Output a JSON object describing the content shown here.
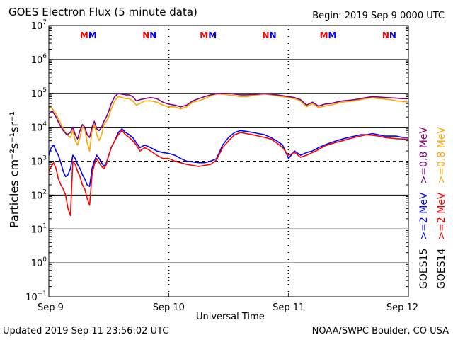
{
  "header": {
    "title": "GOES Electron Flux (5 minute data)",
    "begin": "Begin: 2019 Sep 9 0000 UTC"
  },
  "footer": {
    "updated": "Updated 2019 Sep 11 23:56:02 UTC",
    "credit": "NOAA/SWPC Boulder, CO USA"
  },
  "legend": {
    "goes15": {
      "label": "GOES15",
      "e2_label": ">=2 MeV",
      "e08_label": ">=0.8 MeV",
      "e2_color": "#0000ff",
      "e08_color": "#800080"
    },
    "goes14": {
      "label": "GOES14",
      "e2_label": ">=2 MeV",
      "e08_label": ">=0.8 MeV",
      "e2_color": "#ff0000",
      "e08_color": "#ffa500"
    }
  },
  "markers": [
    {
      "day": 0.33,
      "letters": [
        {
          "t": "M",
          "color": "#ff0000"
        },
        {
          "t": "M",
          "color": "#0000ff"
        }
      ]
    },
    {
      "day": 0.84,
      "letters": [
        {
          "t": "N",
          "color": "#ff0000"
        },
        {
          "t": "N",
          "color": "#0000ff"
        }
      ]
    },
    {
      "day": 1.33,
      "letters": [
        {
          "t": "M",
          "color": "#ff0000"
        },
        {
          "t": "M",
          "color": "#0000ff"
        }
      ]
    },
    {
      "day": 1.84,
      "letters": [
        {
          "t": "N",
          "color": "#ff0000"
        },
        {
          "t": "N",
          "color": "#0000ff"
        }
      ]
    },
    {
      "day": 2.33,
      "letters": [
        {
          "t": "M",
          "color": "#ff0000"
        },
        {
          "t": "M",
          "color": "#0000ff"
        }
      ]
    },
    {
      "day": 2.84,
      "letters": [
        {
          "t": "N",
          "color": "#ff0000"
        },
        {
          "t": "N",
          "color": "#0000ff"
        }
      ]
    }
  ],
  "chart_data": {
    "type": "line",
    "title": "GOES Electron Flux (5 minute data)",
    "xlabel": "Universal Time",
    "ylabel": "Particles cm⁻²s⁻¹sr⁻¹",
    "y_scale": "log",
    "xlim": [
      0,
      3
    ],
    "ylim": [
      0.1,
      10000000
    ],
    "x_ticks": [
      {
        "v": 0,
        "label": "Sep 9"
      },
      {
        "v": 1,
        "label": "Sep 10"
      },
      {
        "v": 2,
        "label": "Sep 11"
      },
      {
        "v": 3,
        "label": "Sep 12"
      }
    ],
    "y_ticks": [
      {
        "v": 0.1,
        "base": "10",
        "exp": "−1"
      },
      {
        "v": 1,
        "base": "10",
        "exp": "0"
      },
      {
        "v": 10,
        "base": "10",
        "exp": "1"
      },
      {
        "v": 100,
        "base": "10",
        "exp": "2"
      },
      {
        "v": 1000,
        "base": "10",
        "exp": "3"
      },
      {
        "v": 10000,
        "base": "10",
        "exp": "4"
      },
      {
        "v": 100000,
        "base": "10",
        "exp": "5"
      },
      {
        "v": 1000000,
        "base": "10",
        "exp": "6"
      },
      {
        "v": 10000000,
        "base": "10",
        "exp": "7"
      }
    ],
    "hlines": [
      1,
      10,
      100,
      10000,
      100000,
      1000000
    ],
    "dashed_hline": 1000,
    "series": [
      {
        "name": "GOES14 >=0.8 MeV",
        "color": "#ffa500",
        "x": [
          0,
          0.03,
          0.06,
          0.09,
          0.12,
          0.15,
          0.18,
          0.2,
          0.22,
          0.24,
          0.26,
          0.28,
          0.3,
          0.32,
          0.34,
          0.36,
          0.38,
          0.4,
          0.42,
          0.44,
          0.46,
          0.48,
          0.5,
          0.52,
          0.55,
          0.58,
          0.61,
          0.64,
          0.67,
          0.7,
          0.73,
          0.76,
          0.8,
          0.85,
          0.9,
          0.95,
          1.0,
          1.05,
          1.1,
          1.15,
          1.2,
          1.25,
          1.3,
          1.35,
          1.4,
          1.45,
          1.5,
          1.55,
          1.6,
          1.65,
          1.7,
          1.75,
          1.8,
          1.85,
          1.9,
          1.95,
          2.0,
          2.05,
          2.1,
          2.15,
          2.2,
          2.25,
          2.3,
          2.35,
          2.4,
          2.45,
          2.5,
          2.55,
          2.6,
          2.65,
          2.7,
          2.75,
          2.8,
          2.85,
          2.9,
          2.95,
          3.0
        ],
        "y": [
          40000,
          35000,
          25000,
          15000,
          9000,
          6000,
          5000,
          8000,
          4000,
          3000,
          5000,
          10000,
          9000,
          3500,
          2000,
          8000,
          12000,
          6000,
          4000,
          6000,
          12000,
          15000,
          20000,
          35000,
          60000,
          80000,
          75000,
          70000,
          70000,
          60000,
          45000,
          50000,
          60000,
          60000,
          55000,
          45000,
          40000,
          40000,
          35000,
          40000,
          55000,
          60000,
          70000,
          85000,
          95000,
          95000,
          90000,
          85000,
          80000,
          80000,
          85000,
          90000,
          95000,
          90000,
          85000,
          80000,
          75000,
          70000,
          60000,
          40000,
          50000,
          38000,
          42000,
          45000,
          50000,
          55000,
          58000,
          60000,
          65000,
          70000,
          75000,
          70000,
          68000,
          65000,
          60000,
          58000,
          55000
        ]
      },
      {
        "name": "GOES15 >=0.8 MeV",
        "color": "#800080",
        "x": [
          0,
          0.03,
          0.06,
          0.09,
          0.12,
          0.15,
          0.18,
          0.2,
          0.22,
          0.24,
          0.26,
          0.28,
          0.3,
          0.32,
          0.34,
          0.36,
          0.38,
          0.4,
          0.42,
          0.44,
          0.46,
          0.48,
          0.5,
          0.52,
          0.55,
          0.58,
          0.61,
          0.64,
          0.67,
          0.7,
          0.73,
          0.76,
          0.8,
          0.85,
          0.9,
          0.95,
          1.0,
          1.05,
          1.1,
          1.15,
          1.2,
          1.25,
          1.3,
          1.35,
          1.4,
          1.45,
          1.5,
          1.55,
          1.6,
          1.65,
          1.7,
          1.75,
          1.8,
          1.85,
          1.9,
          1.95,
          2.0,
          2.05,
          2.1,
          2.15,
          2.2,
          2.25,
          2.3,
          2.35,
          2.4,
          2.45,
          2.5,
          2.55,
          2.6,
          2.65,
          2.7,
          2.75,
          2.8,
          2.85,
          2.9,
          2.95,
          3.0
        ],
        "y": [
          25000,
          30000,
          20000,
          12000,
          8000,
          6000,
          7000,
          10000,
          6000,
          4500,
          8000,
          12000,
          10000,
          6000,
          5000,
          10000,
          15000,
          9000,
          8000,
          10000,
          15000,
          20000,
          30000,
          50000,
          80000,
          100000,
          95000,
          90000,
          90000,
          80000,
          60000,
          65000,
          70000,
          75000,
          70000,
          55000,
          48000,
          45000,
          40000,
          45000,
          60000,
          70000,
          80000,
          90000,
          98000,
          100000,
          100000,
          95000,
          90000,
          90000,
          92000,
          95000,
          98000,
          95000,
          90000,
          85000,
          80000,
          75000,
          65000,
          45000,
          55000,
          42000,
          48000,
          50000,
          55000,
          60000,
          62000,
          65000,
          70000,
          75000,
          80000,
          78000,
          76000,
          74000,
          72000,
          70000,
          70000
        ]
      },
      {
        "name": "GOES15 >=2 MeV",
        "color": "#0000ff",
        "x": [
          0,
          0.02,
          0.04,
          0.06,
          0.08,
          0.1,
          0.12,
          0.14,
          0.16,
          0.18,
          0.2,
          0.22,
          0.24,
          0.26,
          0.28,
          0.3,
          0.32,
          0.34,
          0.36,
          0.38,
          0.4,
          0.42,
          0.44,
          0.46,
          0.48,
          0.5,
          0.52,
          0.55,
          0.58,
          0.61,
          0.64,
          0.67,
          0.7,
          0.73,
          0.76,
          0.8,
          0.85,
          0.9,
          0.95,
          1.0,
          1.05,
          1.1,
          1.15,
          1.2,
          1.25,
          1.3,
          1.35,
          1.4,
          1.45,
          1.5,
          1.55,
          1.6,
          1.65,
          1.7,
          1.75,
          1.8,
          1.85,
          1.9,
          1.95,
          2.0,
          2.05,
          2.1,
          2.15,
          2.2,
          2.25,
          2.3,
          2.35,
          2.4,
          2.45,
          2.5,
          2.55,
          2.6,
          2.65,
          2.7,
          2.75,
          2.8,
          2.85,
          2.9,
          2.95,
          3.0
        ],
        "y": [
          1500,
          2500,
          3000,
          2000,
          1500,
          900,
          500,
          350,
          400,
          600,
          1500,
          1200,
          800,
          600,
          400,
          300,
          200,
          180,
          600,
          1000,
          1500,
          1200,
          900,
          700,
          900,
          1500,
          2500,
          4000,
          7000,
          9000,
          7000,
          6000,
          5000,
          3500,
          2500,
          3000,
          2500,
          2000,
          1800,
          1700,
          1500,
          1200,
          1000,
          950,
          900,
          900,
          1000,
          1200,
          3000,
          5000,
          7000,
          8000,
          7500,
          7000,
          6500,
          6000,
          5000,
          4000,
          3000,
          1200,
          2000,
          1500,
          1800,
          2000,
          2500,
          3000,
          3500,
          4000,
          4500,
          5000,
          5500,
          6000,
          6000,
          6500,
          6000,
          5500,
          5500,
          5500,
          5000,
          5000
        ]
      },
      {
        "name": "GOES14 >=2 MeV",
        "color": "#ff0000",
        "x": [
          0,
          0.02,
          0.04,
          0.06,
          0.08,
          0.1,
          0.12,
          0.14,
          0.16,
          0.18,
          0.2,
          0.22,
          0.24,
          0.26,
          0.28,
          0.3,
          0.32,
          0.34,
          0.36,
          0.38,
          0.4,
          0.42,
          0.44,
          0.46,
          0.48,
          0.5,
          0.52,
          0.55,
          0.58,
          0.61,
          0.64,
          0.67,
          0.7,
          0.73,
          0.76,
          0.8,
          0.85,
          0.9,
          0.95,
          1.0,
          1.05,
          1.1,
          1.15,
          1.2,
          1.25,
          1.3,
          1.35,
          1.4,
          1.45,
          1.5,
          1.55,
          1.6,
          1.65,
          1.7,
          1.75,
          1.8,
          1.85,
          1.9,
          1.95,
          2.0,
          2.05,
          2.1,
          2.15,
          2.2,
          2.25,
          2.3,
          2.35,
          2.4,
          2.45,
          2.5,
          2.55,
          2.6,
          2.65,
          2.7,
          2.75,
          2.8,
          2.85,
          2.9,
          2.95,
          3.0
        ],
        "y": [
          500,
          700,
          900,
          600,
          300,
          200,
          150,
          100,
          40,
          25,
          1000,
          800,
          500,
          350,
          200,
          150,
          80,
          50,
          400,
          800,
          1200,
          900,
          700,
          600,
          800,
          1500,
          2500,
          4000,
          6000,
          8000,
          6000,
          5000,
          4000,
          3000,
          2000,
          2500,
          2000,
          1500,
          1200,
          1200,
          1000,
          900,
          800,
          750,
          700,
          750,
          800,
          1100,
          2500,
          4000,
          6000,
          7000,
          6500,
          6000,
          5500,
          5000,
          4500,
          3500,
          2500,
          1500,
          1800,
          1300,
          1500,
          1800,
          2200,
          2800,
          3200,
          3600,
          4000,
          4500,
          5000,
          5500,
          6000,
          5800,
          5500,
          5000,
          4800,
          4600,
          4500,
          4500
        ]
      }
    ]
  }
}
